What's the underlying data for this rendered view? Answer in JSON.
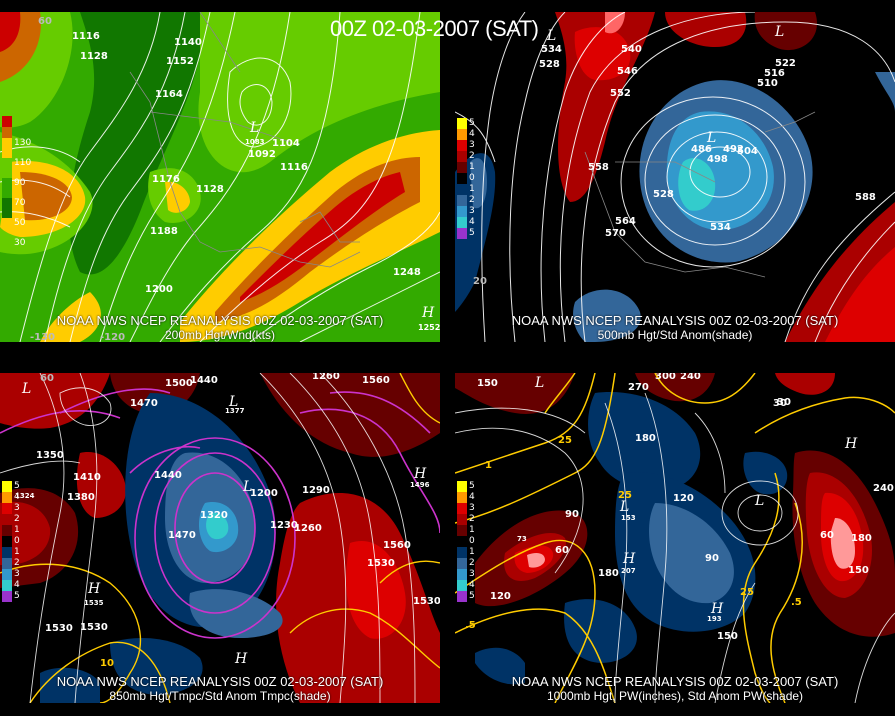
{
  "title": "00Z 02-03-2007 (SAT)",
  "panels": [
    {
      "id": "200mb",
      "credit": "NOAA NWS NCEP REANALYSIS 00Z 02-03-2007 (SAT)",
      "subtitle": "200mb Hgt/Wnd(kts)",
      "legend": {
        "labels": [
          "130",
          "110",
          "90",
          "70",
          "50",
          "30"
        ],
        "colors": [
          "#cc0000",
          "#cc6600",
          "#ffcc00",
          "#66cc00",
          "#33aa00",
          "#117700"
        ]
      },
      "contour_labels": [
        "1116",
        "1128",
        "1140",
        "1152",
        "1164",
        "1092",
        "1104",
        "1116",
        "1128",
        "1176",
        "1188",
        "1200",
        "1248",
        "1252"
      ],
      "center_labels": [
        "L",
        "1083",
        "H"
      ],
      "lon_labels": [
        "60",
        "-130",
        "-120"
      ]
    },
    {
      "id": "500mb",
      "credit": "NOAA NWS NCEP REANALYSIS 00Z 02-03-2007 (SAT)",
      "subtitle": "500mb Hgt/Std Anom(shade)",
      "legend": {
        "labels": [
          "5",
          "4",
          "3",
          "2",
          "1",
          "0",
          "1",
          "2",
          "3",
          "4",
          "5"
        ],
        "colors": [
          "#ffff00",
          "#ff9900",
          "#dd0000",
          "#aa0000",
          "#660000",
          "#000000",
          "#003366",
          "#336699",
          "#3399cc",
          "#33cccc",
          "#9933cc"
        ]
      },
      "contour_labels": [
        "534",
        "528",
        "540",
        "546",
        "552",
        "558",
        "564",
        "570",
        "486",
        "492",
        "498",
        "504",
        "510",
        "516",
        "522",
        "528",
        "534",
        "588"
      ],
      "center_labels": [
        "L",
        "L",
        "L"
      ],
      "lon_labels": [
        "20"
      ]
    },
    {
      "id": "850mb",
      "credit": "NOAA NWS NCEP REANALYSIS 00Z 02-03-2007 (SAT)",
      "subtitle": "850mb Hgt/Tmpc/Std Anom Tmpc(shade)",
      "legend": {
        "labels": [
          "5",
          "4",
          "3",
          "2",
          "1",
          "0",
          "1",
          "2",
          "3",
          "4",
          "5"
        ],
        "colors": [
          "#ffff00",
          "#ff9900",
          "#dd0000",
          "#aa0000",
          "#660000",
          "#000000",
          "#003366",
          "#336699",
          "#3399cc",
          "#33cccc",
          "#9933cc"
        ]
      },
      "contour_labels": [
        "1500",
        "1440",
        "1470",
        "1260",
        "1560",
        "1350",
        "1410",
        "1380",
        "1440",
        "1200",
        "1290",
        "1230",
        "1260",
        "1320",
        "1470",
        "1530",
        "1560",
        "1530",
        "1530",
        "1530",
        "10",
        "1324",
        "1377",
        "1535",
        "1496"
      ],
      "center_labels": [
        "L",
        "L",
        "L",
        "H",
        "H",
        "H"
      ],
      "lon_labels": [
        "60"
      ]
    },
    {
      "id": "1000mb",
      "credit": "NOAA NWS NCEP REANALYSIS 00Z 02-03-2007 (SAT)",
      "subtitle": "1000mb Hgt, PW(inches), Std Anom PW(shade)",
      "legend": {
        "labels": [
          "5",
          "4",
          "3",
          "2",
          "1",
          "0",
          "1",
          "2",
          "3",
          "4",
          "5"
        ],
        "colors": [
          "#ffff00",
          "#ff9900",
          "#dd0000",
          "#aa0000",
          "#660000",
          "#000000",
          "#003366",
          "#336699",
          "#3399cc",
          "#33cccc",
          "#9933cc"
        ]
      },
      "contour_labels": [
        "150",
        "270",
        "300",
        "240",
        "30",
        "180",
        "120",
        "90",
        "60",
        "180",
        "120",
        "90",
        "150",
        "30",
        "240",
        "60",
        "150",
        "180",
        "25",
        "25",
        "25",
        ".5",
        ".5",
        "1",
        "73",
        "153",
        "207",
        "193"
      ],
      "center_labels": [
        "L",
        "L",
        "L",
        "H",
        "H",
        "H"
      ],
      "lon_labels": []
    }
  ]
}
